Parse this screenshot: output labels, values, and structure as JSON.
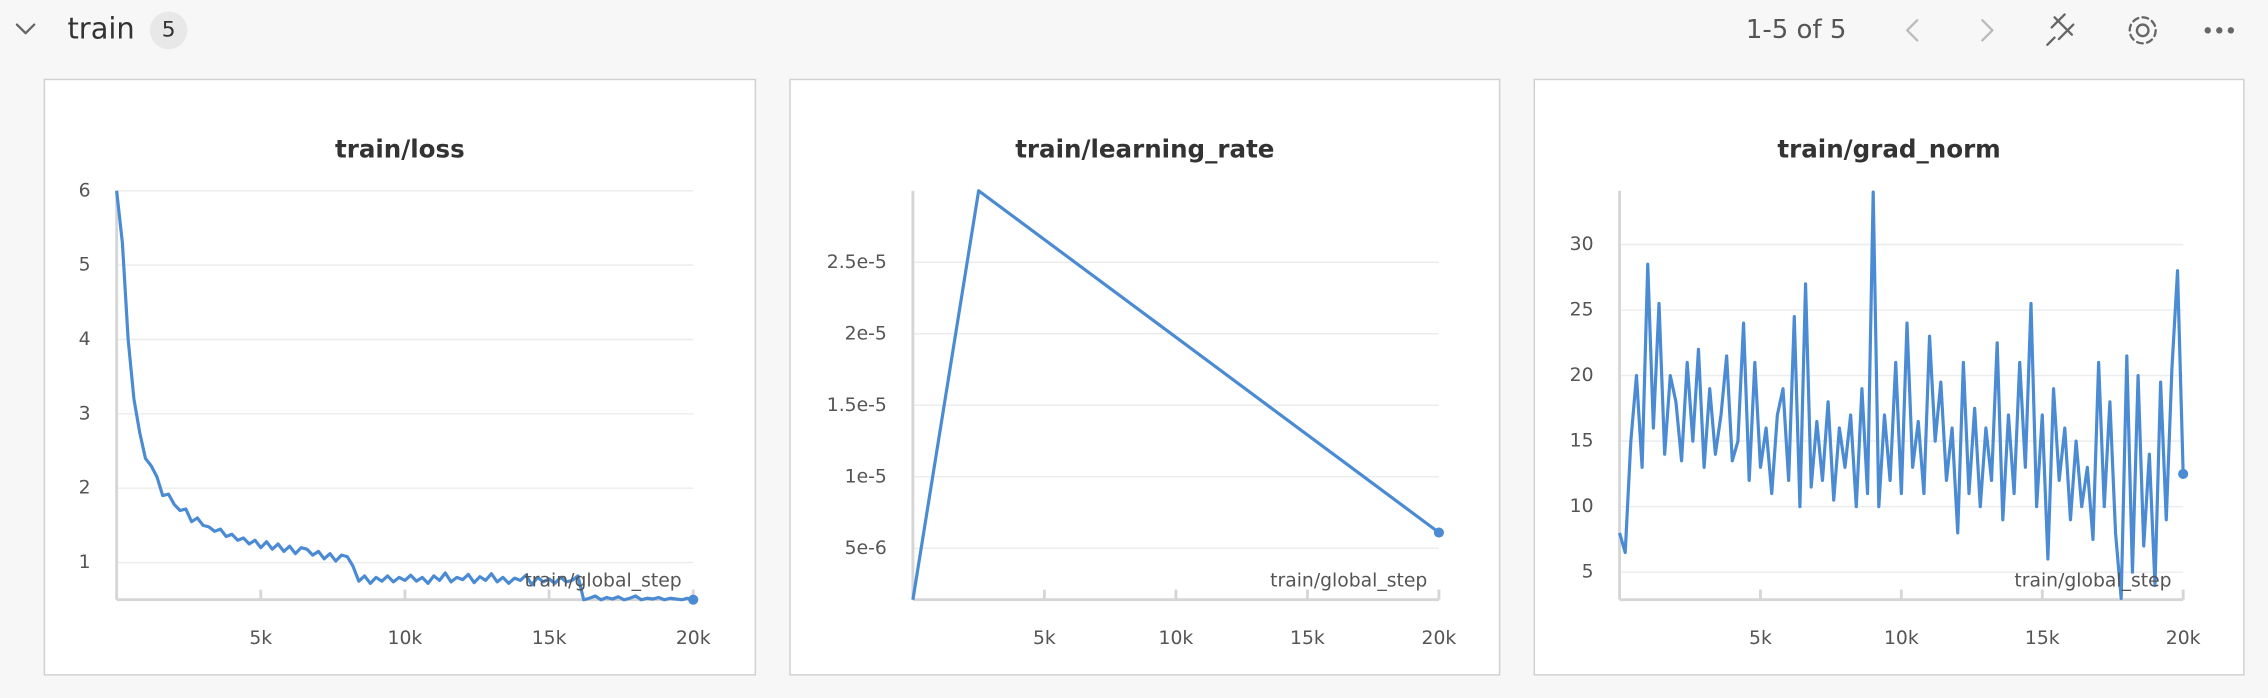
{
  "header": {
    "title": "train",
    "count": "5",
    "pagination": "1-5 of 5"
  },
  "chart_data": [
    {
      "type": "line",
      "title": "train/loss",
      "x_label": "train/global_step",
      "color": "#4a8bd4",
      "grid": true,
      "x": [
        0,
        200,
        400,
        600,
        800,
        1000,
        1200,
        1400,
        1600,
        1800,
        2000,
        2200,
        2400,
        2600,
        2800,
        3000,
        3200,
        3400,
        3600,
        3800,
        4000,
        4200,
        4400,
        4600,
        4800,
        5000,
        5200,
        5400,
        5600,
        5800,
        6000,
        6200,
        6400,
        6600,
        6800,
        7000,
        7200,
        7400,
        7600,
        7800,
        8000,
        8200,
        8400,
        8600,
        8800,
        9000,
        9200,
        9400,
        9600,
        9800,
        10000,
        10200,
        10400,
        10600,
        10800,
        11000,
        11200,
        11400,
        11600,
        11800,
        12000,
        12200,
        12400,
        12600,
        12800,
        13000,
        13200,
        13400,
        13600,
        13800,
        14000,
        14200,
        14400,
        14600,
        14800,
        15000,
        15200,
        15400,
        15600,
        15800,
        16000,
        16200,
        16400,
        16600,
        16800,
        17000,
        17200,
        17400,
        17600,
        17800,
        18000,
        18200,
        18400,
        18600,
        18800,
        19000,
        19200,
        19400,
        19600,
        19800,
        20000
      ],
      "values": [
        6.0,
        5.3,
        4.0,
        3.2,
        2.75,
        2.4,
        2.3,
        2.15,
        1.9,
        1.92,
        1.78,
        1.7,
        1.72,
        1.55,
        1.6,
        1.5,
        1.48,
        1.42,
        1.45,
        1.35,
        1.38,
        1.3,
        1.33,
        1.25,
        1.3,
        1.2,
        1.28,
        1.18,
        1.25,
        1.15,
        1.22,
        1.12,
        1.2,
        1.18,
        1.1,
        1.15,
        1.05,
        1.12,
        1.02,
        1.1,
        1.08,
        0.95,
        0.75,
        0.82,
        0.72,
        0.8,
        0.75,
        0.82,
        0.74,
        0.8,
        0.76,
        0.83,
        0.75,
        0.8,
        0.72,
        0.82,
        0.76,
        0.86,
        0.74,
        0.8,
        0.77,
        0.84,
        0.73,
        0.81,
        0.76,
        0.85,
        0.74,
        0.8,
        0.72,
        0.79,
        0.76,
        0.83,
        0.7,
        0.8,
        0.74,
        0.78,
        0.72,
        0.8,
        0.74,
        0.76,
        0.82,
        0.5,
        0.52,
        0.55,
        0.5,
        0.53,
        0.51,
        0.54,
        0.5,
        0.52,
        0.55,
        0.5,
        0.52,
        0.51,
        0.53,
        0.5,
        0.52,
        0.51,
        0.5,
        0.52,
        0.5
      ],
      "xlim": [
        0,
        20000
      ],
      "ylim": [
        0.5,
        6
      ],
      "xticks": [
        {
          "value": 5000,
          "label": "5k"
        },
        {
          "value": 10000,
          "label": "10k"
        },
        {
          "value": 15000,
          "label": "15k"
        },
        {
          "value": 20000,
          "label": "20k"
        }
      ],
      "yticks": [
        1,
        2,
        3,
        4,
        5,
        6
      ]
    },
    {
      "type": "line",
      "title": "train/learning_rate",
      "x_label": "train/global_step",
      "color": "#4a8bd4",
      "grid": true,
      "x": [
        0,
        2500,
        20000
      ],
      "values": [
        1.4e-06,
        3e-05,
        6.1e-06
      ],
      "xlim": [
        0,
        20000
      ],
      "ylim": [
        1.4e-06,
        3e-05
      ],
      "xticks": [
        {
          "value": 5000,
          "label": "5k"
        },
        {
          "value": 10000,
          "label": "10k"
        },
        {
          "value": 15000,
          "label": "15k"
        },
        {
          "value": 20000,
          "label": "20k"
        }
      ],
      "yticks": [
        {
          "value": 5e-06,
          "label": "5e-6"
        },
        {
          "value": 1e-05,
          "label": "1e-5"
        },
        {
          "value": 1.5e-05,
          "label": "1.5e-5"
        },
        {
          "value": 2e-05,
          "label": "2e-5"
        },
        {
          "value": 2.5e-05,
          "label": "2.5e-5"
        }
      ]
    },
    {
      "type": "line",
      "title": "train/grad_norm",
      "x_label": "train/global_step",
      "color": "#4a8bd4",
      "grid": true,
      "x": [
        0,
        200,
        400,
        600,
        800,
        1000,
        1200,
        1400,
        1600,
        1800,
        2000,
        2200,
        2400,
        2600,
        2800,
        3000,
        3200,
        3400,
        3600,
        3800,
        4000,
        4200,
        4400,
        4600,
        4800,
        5000,
        5200,
        5400,
        5600,
        5800,
        6000,
        6200,
        6400,
        6600,
        6800,
        7000,
        7200,
        7400,
        7600,
        7800,
        8000,
        8200,
        8400,
        8600,
        8800,
        9000,
        9200,
        9400,
        9600,
        9800,
        10000,
        10200,
        10400,
        10600,
        10800,
        11000,
        11200,
        11400,
        11600,
        11800,
        12000,
        12200,
        12400,
        12600,
        12800,
        13000,
        13200,
        13400,
        13600,
        13800,
        14000,
        14200,
        14400,
        14600,
        14800,
        15000,
        15200,
        15400,
        15600,
        15800,
        16000,
        16200,
        16400,
        16600,
        16800,
        17000,
        17200,
        17400,
        17600,
        17800,
        18000,
        18200,
        18400,
        18600,
        18800,
        19000,
        19200,
        19400,
        19600,
        19800,
        20000
      ],
      "values": [
        8,
        6.5,
        15,
        20,
        13,
        28.5,
        16,
        25.5,
        14,
        20,
        18,
        13.5,
        21,
        15,
        22,
        13,
        19,
        14,
        17,
        21.5,
        13.5,
        15,
        24,
        12,
        21,
        13,
        16,
        11,
        17,
        19,
        12,
        24.5,
        10,
        27,
        11.5,
        16.5,
        12,
        18,
        10.5,
        16,
        13,
        17,
        10,
        19,
        11,
        34,
        10,
        17,
        12,
        21,
        11,
        24,
        13,
        16.5,
        11,
        23,
        15,
        19.5,
        12,
        16,
        8,
        21,
        11,
        17.5,
        10,
        16,
        12,
        22.5,
        9,
        17,
        11,
        21,
        13,
        25.5,
        10,
        17,
        6,
        19,
        12,
        16,
        9,
        15,
        10,
        13,
        7.5,
        21,
        10,
        18,
        8,
        3,
        21.5,
        5,
        20,
        7,
        14,
        4,
        19.5,
        9,
        20.5,
        28,
        12.5
      ],
      "xlim": [
        0,
        20000
      ],
      "ylim": [
        2.9,
        34.1
      ],
      "xticks": [
        {
          "value": 5000,
          "label": "5k"
        },
        {
          "value": 10000,
          "label": "10k"
        },
        {
          "value": 15000,
          "label": "15k"
        },
        {
          "value": 20000,
          "label": "20k"
        }
      ],
      "yticks": [
        5,
        10,
        15,
        20,
        25,
        30
      ]
    }
  ]
}
